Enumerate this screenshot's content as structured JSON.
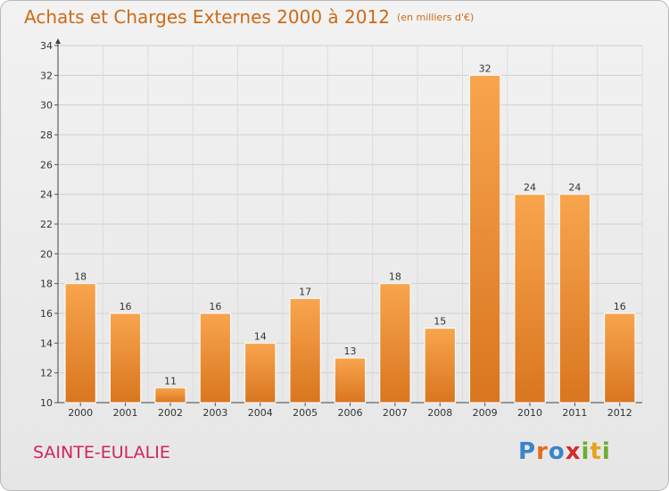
{
  "header": {
    "title": "Achats et Charges Externes 2000 à 2012",
    "subtitle": "(en milliers d'€)"
  },
  "footer": {
    "location": "SAINTE-EULALIE",
    "logo_text": "Proxiti",
    "logo_letters": [
      {
        "char": "P",
        "color": "#3a84c9"
      },
      {
        "char": "r",
        "color": "#e8681a"
      },
      {
        "char": "o",
        "color": "#3a84c9"
      },
      {
        "char": "x",
        "color": "#d22b2b"
      },
      {
        "char": "i",
        "color": "#6cae2e"
      },
      {
        "char": "t",
        "color": "#e8a21a"
      },
      {
        "char": "i",
        "color": "#6cae2e"
      }
    ]
  },
  "colors": {
    "title": "#ce6a16",
    "location": "#d2245e",
    "bar_top": "#f8a54e",
    "bar_bottom": "#d9761f",
    "bar_edge": "#ffffff"
  },
  "chart_data": {
    "type": "bar",
    "title": "Achats et Charges Externes 2000 à 2012",
    "subtitle": "(en milliers d'€)",
    "xlabel": "",
    "ylabel": "",
    "categories": [
      "2000",
      "2001",
      "2002",
      "2003",
      "2004",
      "2005",
      "2006",
      "2007",
      "2008",
      "2009",
      "2010",
      "2011",
      "2012"
    ],
    "values": [
      18,
      16,
      11,
      16,
      14,
      17,
      13,
      18,
      15,
      32,
      24,
      24,
      16
    ],
    "ylim": [
      10,
      34
    ],
    "yticks": [
      10,
      12,
      14,
      16,
      18,
      20,
      22,
      24,
      26,
      28,
      30,
      32,
      34
    ],
    "grid": true,
    "data_labels": true
  }
}
